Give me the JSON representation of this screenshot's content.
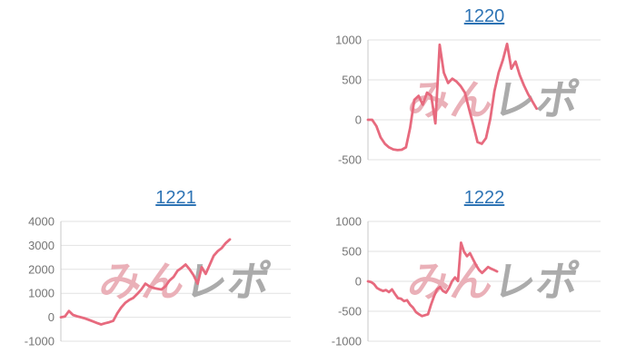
{
  "page": {
    "background": "#ffffff"
  },
  "theme": {
    "line_color": "#e76a7e",
    "link_color": "#2e74b5",
    "tick_label_color": "#757575",
    "gridline_color": "#e2e2e2",
    "axis_line_color": "#c8c8c8",
    "watermark_pink": "#eab0b8",
    "watermark_gray": "#ababab"
  },
  "watermark": {
    "text_left": "みん",
    "text_right": "レポ"
  },
  "chart_data": [
    {
      "type": "line",
      "title": "1220",
      "xlabel": "",
      "ylabel": "",
      "ylim": [
        -500,
        1000
      ],
      "yticks": [
        1000,
        500,
        0,
        -500
      ],
      "grid": true,
      "legend": "none",
      "x_fill_fraction": 0.725,
      "values": [
        0,
        0,
        -80,
        -220,
        -300,
        -345,
        -370,
        -380,
        -375,
        -345,
        -100,
        250,
        300,
        190,
        340,
        300,
        -45,
        940,
        590,
        460,
        515,
        480,
        420,
        340,
        130,
        -70,
        -280,
        -300,
        -230,
        10,
        360,
        590,
        750,
        950,
        640,
        730,
        560,
        430,
        320,
        230,
        140
      ]
    },
    {
      "type": "line",
      "title": "1221",
      "xlabel": "",
      "ylabel": "",
      "ylim": [
        -1000,
        4000
      ],
      "yticks": [
        4000,
        3000,
        2000,
        1000,
        0,
        -1000
      ],
      "grid": true,
      "legend": "none",
      "x_fill_fraction": 0.735,
      "values": [
        0,
        30,
        260,
        100,
        40,
        0,
        -50,
        -110,
        -175,
        -240,
        -300,
        -250,
        -210,
        -150,
        160,
        410,
        600,
        725,
        810,
        975,
        1160,
        1400,
        1290,
        1225,
        1190,
        1160,
        1290,
        1530,
        1680,
        1940,
        2060,
        2200,
        2000,
        1750,
        1400,
        2090,
        1810,
        2190,
        2570,
        2760,
        2890,
        3100,
        3250
      ]
    },
    {
      "type": "line",
      "title": "1222",
      "xlabel": "",
      "ylabel": "",
      "ylim": [
        -1000,
        1000
      ],
      "yticks": [
        1000,
        500,
        0,
        -500,
        -1000
      ],
      "grid": true,
      "legend": "none",
      "x_fill_fraction": 0.555,
      "values": [
        0,
        -10,
        -45,
        -110,
        -140,
        -160,
        -145,
        -180,
        -135,
        -210,
        -280,
        -290,
        -330,
        -315,
        -390,
        -440,
        -515,
        -550,
        -580,
        -565,
        -550,
        -390,
        -250,
        -135,
        -95,
        -160,
        -190,
        -110,
        0,
        65,
        5,
        645,
        495,
        420,
        470,
        370,
        270,
        190,
        140,
        190,
        240,
        210,
        190,
        165
      ]
    }
  ]
}
